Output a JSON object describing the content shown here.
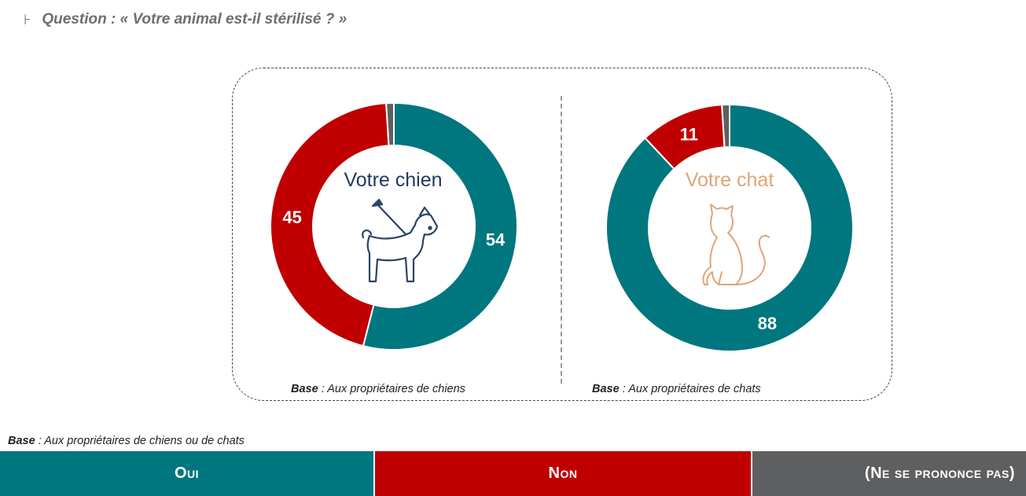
{
  "header": {
    "marker": "⊦",
    "question": "Question : « Votre animal est-il stérilisé ? »"
  },
  "colors": {
    "oui": "#00767e",
    "non": "#c00000",
    "nsp": "#5e5f61",
    "dog_title": "#1f3a5f",
    "cat_title": "#e0a47a"
  },
  "chart_data": [
    {
      "type": "pie",
      "title": "Votre chien",
      "icon": "dog-on-leash-icon",
      "categories": [
        "Oui",
        "Non",
        "(Ne se prononce pas)"
      ],
      "values": [
        54,
        45,
        1
      ],
      "data_labels": [
        "54",
        "45",
        ""
      ],
      "base_label": "Base",
      "base_text": " : Aux propriétaires de chiens"
    },
    {
      "type": "pie",
      "title": "Votre chat",
      "icon": "cat-sitting-icon",
      "categories": [
        "Oui",
        "Non",
        "(Ne se prononce pas)"
      ],
      "values": [
        88,
        11,
        1
      ],
      "data_labels": [
        "88",
        "11",
        ""
      ],
      "base_label": "Base",
      "base_text": " : Aux propriétaires de chats"
    }
  ],
  "footer_base": {
    "label": "Base",
    "text": " : Aux propriétaires de chiens ou de chats"
  },
  "legend": [
    {
      "label": "Oui"
    },
    {
      "label": "Non"
    },
    {
      "label": "(Ne se prononce pas)"
    }
  ]
}
